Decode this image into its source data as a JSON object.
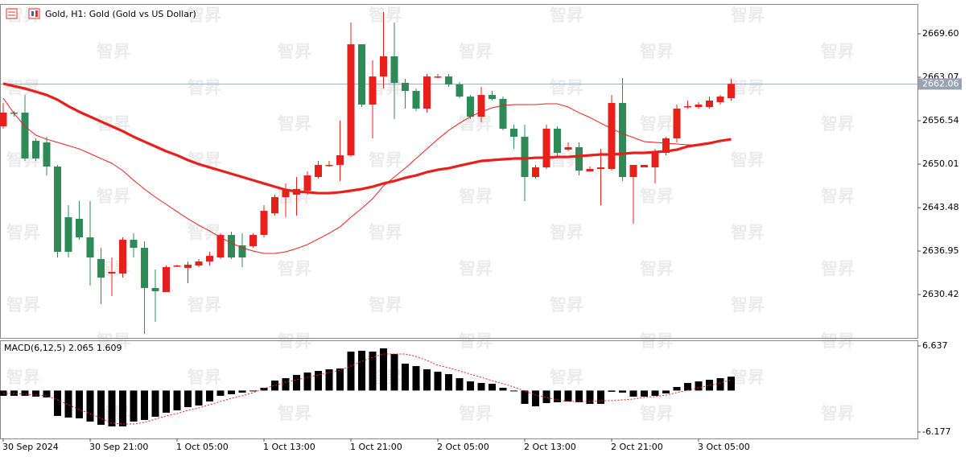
{
  "watermark": "智昇",
  "chart_data": [
    {
      "type": "candlestick",
      "title": "Gold, H1:  Gold (Gold vs US Dollar)",
      "categories": [
        "30 Sep 2024",
        null,
        null,
        null,
        null,
        null,
        null,
        null,
        "30 Sep 21:00",
        null,
        null,
        null,
        null,
        null,
        null,
        null,
        "1 Oct 05:00",
        null,
        null,
        null,
        null,
        null,
        null,
        null,
        "1 Oct 13:00",
        null,
        null,
        null,
        null,
        null,
        null,
        null,
        "1 Oct 21:00",
        null,
        null,
        null,
        null,
        null,
        null,
        null,
        "2 Oct 05:00",
        null,
        null,
        null,
        null,
        null,
        null,
        null,
        "2 Oct 13:00",
        null,
        null,
        null,
        null,
        null,
        null,
        null,
        "2 Oct 21:00",
        null,
        null,
        null,
        null,
        null,
        null,
        null,
        "3 Oct 05:00",
        null,
        null,
        null
      ],
      "open": [
        2655.7,
        2657.76,
        2657.76,
        2653.52,
        2653.28,
        2649.65,
        2642.04,
        2641.8,
        2639.01,
        2635.75,
        2633.57,
        2633.57,
        2638.65,
        2637.44,
        2631.4,
        2630.79,
        2634.78,
        2634.42,
        2634.78,
        2635.39,
        2635.99,
        2639.37,
        2637.81,
        2637.68,
        2639.37,
        2642.64,
        2645.06,
        2645.42,
        2646.03,
        2648.08,
        2649.9,
        2649.9,
        2651.35,
        2668.03,
        2658.97,
        2663.19,
        2666.22,
        2662.23,
        2661.02,
        2658.36,
        2663.19,
        2663.19,
        2661.99,
        2660.17,
        2657.15,
        2660.41,
        2659.81,
        2655.34,
        2654.13,
        2648.08,
        2649.53,
        2655.34,
        2652.19,
        2652.56,
        2648.93,
        2649.29,
        2649.29,
        2659.21,
        2648.08,
        2649.53,
        2649.53,
        2651.71,
        2653.89,
        2658.6,
        2658.6,
        2658.6,
        2659.33,
        2659.93
      ],
      "high": [
        2659.21,
        2658.0,
        2660.41,
        2653.89,
        2654.13,
        2649.9,
        2643.85,
        2644.46,
        2644.46,
        2637.44,
        2635.99,
        2639.01,
        2639.62,
        2638.41,
        2634.18,
        2634.78,
        2634.9,
        2635.39,
        2635.75,
        2636.84,
        2639.62,
        2639.86,
        2639.62,
        2639.62,
        2643.85,
        2645.42,
        2647.11,
        2648.08,
        2648.93,
        2650.5,
        2650.5,
        2656.55,
        2671.3,
        2668.03,
        2665.61,
        2672.87,
        2671.3,
        2662.83,
        2661.38,
        2663.56,
        2663.56,
        2663.56,
        2662.35,
        2660.41,
        2661.62,
        2661.02,
        2660.17,
        2655.94,
        2655.94,
        2649.9,
        2655.94,
        2655.7,
        2653.28,
        2653.28,
        2649.65,
        2652.31,
        2660.41,
        2662.95,
        2649.9,
        2649.9,
        2652.31,
        2654.13,
        2658.97,
        2659.57,
        2659.33,
        2660.17,
        2660.41,
        2662.83
      ],
      "low": [
        2655.34,
        2657.15,
        2650.5,
        2650.5,
        2648.32,
        2635.99,
        2635.99,
        2638.65,
        2631.76,
        2628.98,
        2630.19,
        2632.97,
        2635.99,
        2624.51,
        2626.32,
        2630.79,
        2634.54,
        2632.12,
        2634.54,
        2634.78,
        2635.75,
        2635.75,
        2634.54,
        2637.44,
        2639.01,
        2642.28,
        2642.04,
        2642.28,
        2645.42,
        2647.84,
        2649.65,
        2647.48,
        2651.11,
        2658.6,
        2653.89,
        2661.38,
        2656.79,
        2658.36,
        2658.0,
        2657.76,
        2662.95,
        2661.62,
        2659.93,
        2656.79,
        2656.3,
        2659.57,
        2655.09,
        2652.31,
        2644.46,
        2647.84,
        2649.29,
        2651.11,
        2651.95,
        2648.32,
        2648.93,
        2643.85,
        2649.05,
        2647.48,
        2641.07,
        2649.53,
        2647.11,
        2651.35,
        2653.28,
        2658.36,
        2658.36,
        2658.36,
        2658.97,
        2659.57
      ],
      "close": [
        2657.76,
        2657.63,
        2650.86,
        2650.86,
        2649.65,
        2636.84,
        2636.84,
        2639.01,
        2635.99,
        2632.97,
        2633.82,
        2638.65,
        2637.44,
        2631.4,
        2630.91,
        2634.54,
        2634.78,
        2634.9,
        2635.39,
        2636.23,
        2639.37,
        2635.99,
        2635.99,
        2639.37,
        2643.0,
        2645.06,
        2646.27,
        2646.27,
        2648.32,
        2649.9,
        2649.9,
        2651.35,
        2668.03,
        2658.97,
        2663.19,
        2666.22,
        2662.23,
        2661.02,
        2658.36,
        2663.19,
        2663.19,
        2661.99,
        2660.17,
        2657.15,
        2660.41,
        2659.81,
        2655.34,
        2654.13,
        2648.08,
        2649.53,
        2655.34,
        2651.71,
        2652.56,
        2649.05,
        2649.29,
        2649.53,
        2659.21,
        2648.08,
        2649.9,
        2649.9,
        2651.95,
        2653.89,
        2658.36,
        2658.72,
        2658.97,
        2659.57,
        2660.17,
        2662.06
      ],
      "up_color": "#e8201c",
      "down_color": "#2e8b57",
      "overlays": [
        {
          "color": "#e8201c",
          "width": 3.2,
          "values": [
            2662.11,
            2661.74,
            2661.38,
            2660.9,
            2660.41,
            2659.69,
            2658.72,
            2657.88,
            2657.15,
            2656.42,
            2655.7,
            2654.97,
            2654.13,
            2653.4,
            2652.68,
            2651.95,
            2651.35,
            2650.62,
            2650.02,
            2649.53,
            2649.05,
            2648.57,
            2648.08,
            2647.6,
            2647.11,
            2646.63,
            2646.15,
            2645.91,
            2645.79,
            2645.66,
            2645.66,
            2645.79,
            2646.03,
            2646.27,
            2646.63,
            2647.11,
            2647.48,
            2647.96,
            2648.32,
            2648.81,
            2649.17,
            2649.41,
            2649.78,
            2650.14,
            2650.5,
            2650.62,
            2650.74,
            2650.86,
            2650.86,
            2650.98,
            2650.98,
            2651.1,
            2651.1,
            2651.23,
            2651.35,
            2651.47,
            2651.47,
            2651.59,
            2651.71,
            2651.71,
            2651.83,
            2651.95,
            2652.19,
            2652.68,
            2652.92,
            2653.16,
            2653.52,
            2653.76
          ]
        },
        {
          "color": "#e8201c",
          "width": 1,
          "values": [
            2659.93,
            2657.63,
            2655.7,
            2654.37,
            2653.76,
            2653.28,
            2652.8,
            2652.31,
            2651.59,
            2650.86,
            2650.14,
            2649.05,
            2647.6,
            2646.27,
            2645.06,
            2643.97,
            2642.88,
            2641.8,
            2640.83,
            2639.98,
            2639.01,
            2638.17,
            2637.44,
            2636.96,
            2636.6,
            2636.6,
            2636.84,
            2637.32,
            2637.93,
            2638.77,
            2639.62,
            2640.59,
            2642.04,
            2643.37,
            2644.82,
            2646.75,
            2648.08,
            2649.41,
            2650.86,
            2652.31,
            2653.76,
            2655.09,
            2656.18,
            2657.15,
            2657.88,
            2658.48,
            2658.84,
            2658.96,
            2658.96,
            2658.96,
            2659.08,
            2659.08,
            2658.6,
            2657.75,
            2657.03,
            2656.18,
            2655.34,
            2654.61,
            2654.01,
            2653.4,
            2653.28,
            2653.16,
            2653.04,
            2652.92,
            2652.92,
            2653.16,
            2653.4,
            2653.76
          ]
        }
      ],
      "current_price": 2662.06,
      "ylim": [
        2623.9,
        2674.08
      ],
      "yticks": [
        2630.42,
        2636.95,
        2643.48,
        2650.01,
        2656.54,
        2663.07,
        {
          "value": 2669.6,
          "label": "2669.60"
        }
      ]
    },
    {
      "type": "macd",
      "title": "MACD(6,12,5)",
      "macd_value": 2.065,
      "signal_value": 1.609,
      "color": "#000000",
      "values": [
        -0.79,
        -0.79,
        -0.79,
        -0.91,
        -1.03,
        -3.78,
        -4.02,
        -4.14,
        -4.62,
        -5.1,
        -5.34,
        -5.34,
        -4.62,
        -4.38,
        -3.9,
        -3.3,
        -2.95,
        -2.47,
        -2.23,
        -1.63,
        -0.79,
        -0.55,
        -0.31,
        -0.07,
        0.41,
        1.48,
        1.84,
        2.32,
        2.68,
        2.92,
        3.16,
        3.28,
        5.8,
        5.92,
        5.8,
        6.28,
        5.44,
        4.0,
        3.64,
        3.16,
        2.8,
        2.44,
        1.84,
        1.36,
        1.13,
        1.01,
        0.41,
        -0.07,
        -1.99,
        -2.35,
        -1.87,
        -1.75,
        -1.63,
        -1.75,
        -1.99,
        -1.99,
        -0.19,
        -0.31,
        -0.91,
        -0.91,
        -0.79,
        -0.43,
        0.53,
        1.13,
        1.36,
        1.6,
        1.84,
        2.065
      ],
      "signal": {
        "color": "#e8201c",
        "values": [
          -0.43,
          -0.43,
          -0.55,
          -0.67,
          -0.79,
          -1.39,
          -2.11,
          -2.83,
          -3.43,
          -4.14,
          -4.86,
          -4.98,
          -4.98,
          -4.74,
          -4.26,
          -3.78,
          -3.43,
          -2.95,
          -2.59,
          -2.11,
          -1.63,
          -1.15,
          -0.79,
          -0.31,
          0.29,
          0.77,
          1.25,
          1.6,
          1.96,
          2.32,
          2.68,
          3.04,
          3.64,
          4.36,
          4.96,
          5.44,
          5.44,
          5.44,
          5.08,
          4.48,
          3.76,
          3.4,
          2.92,
          2.44,
          1.96,
          1.48,
          1.01,
          0.53,
          -0.07,
          -0.67,
          -1.03,
          -1.39,
          -1.63,
          -1.63,
          -1.63,
          -1.51,
          -1.51,
          -1.39,
          -1.27,
          -1.03,
          -0.91,
          -0.67,
          -0.31,
          0.05,
          0.41,
          0.77,
          1.13,
          1.609
        ]
      },
      "ylim": [
        -7.135,
        7.475
      ],
      "yticks": [
        -6.177,
        6.637
      ]
    }
  ]
}
